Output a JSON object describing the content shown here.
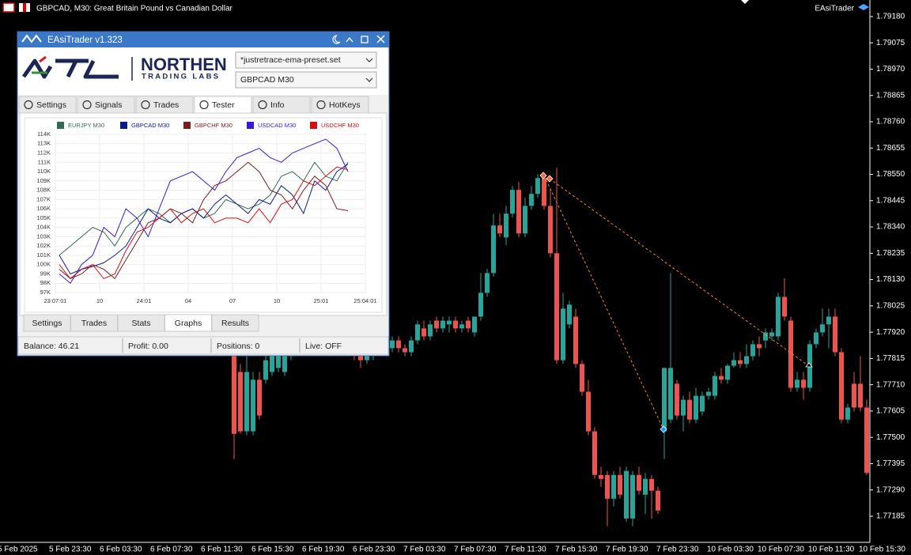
{
  "header": {
    "title": "GBPCAD, M30:  Great Britain Pound vs Canadian Dollar",
    "ea": "EAsiTrader"
  },
  "panel": {
    "title": "EAsiTrader v1.323",
    "brand": "NORTHEN",
    "brand_sub": "TRADING LABS",
    "preset": "*justretrace-ema-preset.set",
    "symbol": "GBPCAD M30",
    "tabs": [
      "Settings",
      "Signals",
      "Trades",
      "Tester",
      "Info",
      "HotKeys"
    ],
    "active_tab": 3,
    "subtabs": [
      "Settings",
      "Trades",
      "Stats",
      "Graphs",
      "Results"
    ],
    "active_subtab": 3,
    "status": [
      "Balance: 46.21",
      "Profit: 0.00",
      "Positions: 0",
      "Live: OFF"
    ]
  },
  "chart_data": [
    {
      "type": "candlestick",
      "up_color": "#26a69a",
      "down_color": "#ef5350",
      "ylim": [
        1.77084,
        1.79246
      ],
      "yticks": [
        {
          "value": 1.7918,
          "label": "1.79180"
        },
        1.79075,
        {
          "value": 1.7897,
          "label": "1.78970"
        },
        1.78865,
        {
          "value": 1.7876,
          "label": "1.78760"
        },
        1.78655,
        {
          "value": 1.7855,
          "label": "1.78550"
        },
        1.78445,
        {
          "value": 1.7834,
          "label": "1.78340"
        },
        1.78235,
        {
          "value": 1.7813,
          "label": "1.78130"
        },
        1.78025,
        {
          "value": 1.7792,
          "label": "1.77920"
        },
        1.77815,
        {
          "value": 1.7771,
          "label": "1.77710"
        },
        1.77605,
        {
          "value": 1.775,
          "label": "1.77500"
        },
        1.77395,
        {
          "value": 1.7729,
          "label": "1.77290"
        },
        1.77185
      ],
      "time_labels": [
        "5 Feb 2025",
        "5 Feb 23:30",
        "6 Feb 03:30",
        "6 Feb 07:30",
        "6 Feb 11:30",
        "6 Feb 15:30",
        "6 Feb 19:30",
        "6 Feb 23:30",
        "7 Feb 03:30",
        "7 Feb 07:30",
        "7 Feb 11:30",
        "7 Feb 15:30",
        "7 Feb 19:30",
        "7 Feb 23:30",
        "10 Feb 03:30",
        "10 Feb 07:30",
        "10 Feb 11:30",
        "10 Feb 15:30"
      ],
      "open": [
        1.77824,
        1.77761,
        1.77524,
        1.77524,
        1.7773,
        1.7773,
        1.77761,
        1.77777,
        1.77761,
        1.77824,
        1.77887,
        1.77919,
        1.77951,
        1.77919,
        1.77951,
        1.77935,
        1.77903,
        1.77872,
        1.77887,
        1.77856,
        1.7784,
        1.77808,
        1.7784,
        1.77856,
        1.77887,
        1.77856,
        1.77887,
        1.77856,
        1.7784,
        1.77887,
        1.77935,
        1.77903,
        1.77966,
        1.77935,
        1.77951,
        1.77966,
        1.77935,
        1.77966,
        1.77919,
        1.77982,
        1.78077,
        1.78156,
        1.78346,
        1.78298,
        1.78393,
        1.78488,
        1.78314,
        1.78424,
        1.78472,
        1.78535,
        1.78424,
        1.78235,
        1.77808,
        1.77951,
        1.77982,
        1.77793,
        1.77682,
        1.77524,
        1.7735,
        1.7735,
        1.77255,
        1.7735,
        1.77176,
        1.77176,
        1.7735,
        1.77271,
        1.77334,
        1.77287,
        1.77524,
        1.77571,
        1.77714,
        1.77587,
        1.7765,
        1.77571,
        1.77603,
        1.77666,
        1.77666,
        1.77745,
        1.7773,
        1.77786,
        1.77808,
        1.77793,
        1.77824,
        1.77872,
        1.77887,
        1.77903,
        1.77903,
        1.78061,
        1.77966,
        1.77698,
        1.7773,
        1.77698,
        1.77872,
        1.77919,
        1.77951,
        1.77982,
        1.7784,
        1.77571,
        1.77714,
        1.77714,
        1.77619
      ],
      "high": [
        1.77856,
        1.77793,
        1.77856,
        1.77761,
        1.77761,
        1.7784,
        1.77856,
        1.77856,
        1.7784,
        1.77919,
        1.77951,
        1.77982,
        1.77982,
        1.77966,
        1.77982,
        1.77966,
        1.77935,
        1.77903,
        1.77919,
        1.77887,
        1.77872,
        1.77856,
        1.77872,
        1.77903,
        1.77919,
        1.77903,
        1.77903,
        1.77872,
        1.77903,
        1.77966,
        1.77966,
        1.77966,
        1.77982,
        1.77982,
        1.77982,
        1.77982,
        1.77966,
        1.77982,
        1.77982,
        1.78156,
        1.78173,
        1.78393,
        1.78393,
        1.78424,
        1.78504,
        1.7852,
        1.78457,
        1.78504,
        1.78551,
        1.78557,
        1.78488,
        1.78576,
        1.78077,
        1.78046,
        1.78014,
        1.77808,
        1.7773,
        1.77541,
        1.77383,
        1.77366,
        1.77366,
        1.77383,
        1.77383,
        1.77366,
        1.77383,
        1.77358,
        1.7735,
        1.77303,
        1.77777,
        1.78156,
        1.7773,
        1.77666,
        1.77682,
        1.77698,
        1.77682,
        1.77698,
        1.77761,
        1.77777,
        1.77793,
        1.7784,
        1.7784,
        1.77872,
        1.77887,
        1.77903,
        1.77935,
        1.77935,
        1.78077,
        1.78135,
        1.77982,
        1.77761,
        1.77761,
        1.77887,
        1.77935,
        1.78014,
        1.78014,
        1.78014,
        1.77856,
        1.77634,
        1.77761,
        1.77824,
        1.7765
      ],
      "low": [
        1.77413,
        1.77514,
        1.77508,
        1.77508,
        1.77571,
        1.77714,
        1.77745,
        1.77761,
        1.77745,
        1.77808,
        1.77856,
        1.77887,
        1.77903,
        1.77887,
        1.77919,
        1.77887,
        1.77856,
        1.7784,
        1.7784,
        1.77808,
        1.77777,
        1.77793,
        1.77808,
        1.77824,
        1.77824,
        1.7784,
        1.7784,
        1.77824,
        1.77824,
        1.77872,
        1.77887,
        1.77887,
        1.77919,
        1.77919,
        1.77919,
        1.77919,
        1.77919,
        1.77919,
        1.77903,
        1.77966,
        1.78061,
        1.78141,
        1.78298,
        1.78267,
        1.78378,
        1.78298,
        1.78298,
        1.78409,
        1.78457,
        1.78409,
        1.7822,
        1.77793,
        1.77793,
        1.77935,
        1.77777,
        1.77666,
        1.77508,
        1.77334,
        1.77303,
        1.77145,
        1.77224,
        1.77255,
        1.77162,
        1.77145,
        1.77271,
        1.77194,
        1.77176,
        1.77194,
        1.77413,
        1.77556,
        1.77571,
        1.77524,
        1.77556,
        1.77556,
        1.77587,
        1.7765,
        1.7765,
        1.77714,
        1.77714,
        1.77777,
        1.77777,
        1.77777,
        1.77808,
        1.77824,
        1.77856,
        1.77887,
        1.77887,
        1.77966,
        1.77682,
        1.77682,
        1.7765,
        1.77682,
        1.77856,
        1.77903,
        1.77856,
        1.77824,
        1.77556,
        1.77556,
        1.77603,
        1.77603,
        1.7735
      ],
      "close": [
        1.77514,
        1.77524,
        1.77761,
        1.7773,
        1.77587,
        1.77808,
        1.77824,
        1.7784,
        1.77824,
        1.77887,
        1.77919,
        1.77951,
        1.77919,
        1.77951,
        1.77935,
        1.77903,
        1.77872,
        1.77887,
        1.77856,
        1.7784,
        1.77808,
        1.7784,
        1.77856,
        1.77887,
        1.77856,
        1.77887,
        1.77856,
        1.7784,
        1.77887,
        1.77951,
        1.77903,
        1.77951,
        1.77935,
        1.77966,
        1.77966,
        1.77935,
        1.77951,
        1.77935,
        1.77982,
        1.78077,
        1.78156,
        1.78346,
        1.78314,
        1.78393,
        1.78488,
        1.78314,
        1.78424,
        1.78472,
        1.78535,
        1.78424,
        1.78235,
        1.77808,
        1.78014,
        1.7803,
        1.77793,
        1.77682,
        1.77524,
        1.7735,
        1.77334,
        1.77255,
        1.7735,
        1.77271,
        1.77366,
        1.7735,
        1.77287,
        1.77334,
        1.77287,
        1.77208,
        1.77777,
        1.77777,
        1.77587,
        1.7765,
        1.77571,
        1.77666,
        1.77666,
        1.77682,
        1.77745,
        1.7773,
        1.77786,
        1.77808,
        1.77793,
        1.77824,
        1.77872,
        1.77856,
        1.77919,
        1.77919,
        1.78061,
        1.77982,
        1.77698,
        1.7773,
        1.77698,
        1.77872,
        1.77919,
        1.77951,
        1.77982,
        1.7784,
        1.77571,
        1.77619,
        1.77619,
        1.77619,
        1.77358
      ]
    },
    {
      "type": "line",
      "grid": true,
      "ylim": [
        97000,
        114000
      ],
      "yticks": [
        {
          "value": 97000,
          "label": "97K"
        },
        {
          "value": 98000,
          "label": "98K"
        },
        {
          "value": 99000,
          "label": "99K"
        },
        {
          "value": 100000,
          "label": "100K"
        },
        {
          "value": 101000,
          "label": "101K"
        },
        {
          "value": 102000,
          "label": "102K"
        },
        {
          "value": 103000,
          "label": "103K"
        },
        {
          "value": 104000,
          "label": "104K"
        },
        {
          "value": 105000,
          "label": "105K"
        },
        {
          "value": 106000,
          "label": "106K"
        },
        {
          "value": 107000,
          "label": "107K"
        },
        {
          "value": 108000,
          "label": "108K"
        },
        {
          "value": 109000,
          "label": "109K"
        },
        {
          "value": 110000,
          "label": "110K"
        },
        {
          "value": 111000,
          "label": "111K"
        },
        {
          "value": 112000,
          "label": "112K"
        },
        {
          "value": 113000,
          "label": "113K"
        },
        {
          "value": 114000,
          "label": "114K"
        }
      ],
      "x_labels": [
        "23:07:01",
        "10",
        "24:01",
        "04",
        "07",
        "10",
        "25:01",
        "25:04:01"
      ],
      "series": [
        {
          "name": "EURJPY M30",
          "color": "#2f6b55",
          "values": [
            101000,
            102000,
            103000,
            104000,
            103500,
            102000,
            104000,
            105000,
            106000,
            105500,
            104500,
            105500,
            106000,
            105000,
            105500,
            107000,
            106500,
            106000,
            106500,
            107500,
            109500,
            110000,
            109000,
            111000,
            109500,
            109000,
            111000
          ]
        },
        {
          "name": "GBPCAD M30",
          "color": "#0b1a8a",
          "values": [
            101000,
            99000,
            99500,
            99800,
            100200,
            101000,
            102000,
            104000,
            106000,
            105000,
            104500,
            105500,
            106000,
            105000,
            106500,
            107500,
            106500,
            105500,
            107000,
            106500,
            108500,
            107500,
            105500,
            109000,
            108000,
            110000,
            110800
          ]
        },
        {
          "name": "GBPCHF M30",
          "color": "#7a1c1c",
          "values": [
            99500,
            98500,
            99000,
            100000,
            99500,
            98500,
            100500,
            102500,
            104500,
            105000,
            106000,
            105500,
            104500,
            107000,
            108500,
            109000,
            110000,
            111000,
            110000,
            108000,
            107500,
            106000,
            108000,
            109500,
            108500,
            106000,
            105800
          ]
        },
        {
          "name": "USDCAD M30",
          "color": "#3a1ad8",
          "values": [
            99000,
            98000,
            100000,
            101000,
            104000,
            103000,
            106000,
            105000,
            103000,
            106000,
            109000,
            109500,
            110000,
            109000,
            108000,
            110000,
            111500,
            112000,
            112500,
            111500,
            111000,
            112000,
            112500,
            113000,
            113500,
            112500,
            110000
          ]
        },
        {
          "name": "USDCHF M30",
          "color": "#d41010",
          "values": [
            100000,
            98500,
            99500,
            100000,
            98500,
            99000,
            101500,
            103500,
            104000,
            105000,
            106000,
            104500,
            105500,
            106000,
            104500,
            105000,
            105000,
            104500,
            106000,
            104500,
            106500,
            107000,
            109000,
            108500,
            109500,
            110500,
            110200
          ]
        }
      ]
    }
  ]
}
